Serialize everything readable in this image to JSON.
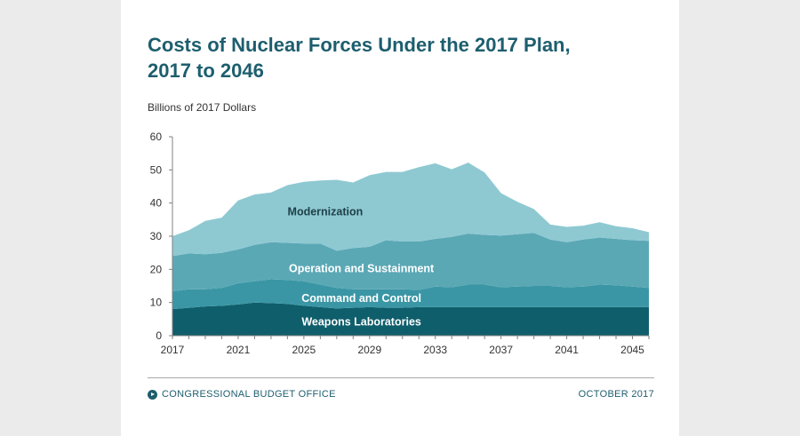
{
  "title_line1": "Costs of Nuclear Forces Under the 2017 Plan,",
  "title_line2": "2017 to 2046",
  "footer": {
    "source": "CONGRESSIONAL BUDGET OFFICE",
    "date": "OCTOBER 2017"
  },
  "colors": {
    "weapons": "#0f5e6c",
    "command": "#3a96a5",
    "operation": "#5ba8b5",
    "modernization": "#8ec9d2",
    "axis": "#808080",
    "title": "#1d5e6e"
  },
  "chart_data": {
    "type": "area",
    "stacked": true,
    "ylabel": "Billions of 2017 Dollars",
    "ylim": [
      0,
      60
    ],
    "yticks": [
      "0",
      "10",
      "20",
      "30",
      "40",
      "50",
      "60"
    ],
    "xlim": [
      2017,
      2046
    ],
    "xticks": [
      "2017",
      "2021",
      "2025",
      "2029",
      "2033",
      "2037",
      "2041",
      "2045"
    ],
    "x": [
      2017,
      2018,
      2019,
      2020,
      2021,
      2022,
      2023,
      2024,
      2025,
      2026,
      2027,
      2028,
      2029,
      2030,
      2031,
      2032,
      2033,
      2034,
      2035,
      2036,
      2037,
      2038,
      2039,
      2040,
      2041,
      2042,
      2043,
      2044,
      2045,
      2046
    ],
    "series": [
      {
        "name": "Weapons Laboratories",
        "key": "weapons",
        "values": [
          8,
          8.4,
          8.8,
          9,
          9.4,
          10,
          9.8,
          9.6,
          9,
          8.6,
          8.2,
          8.4,
          8.6,
          8.4,
          8.4,
          8.6,
          8.6,
          8.6,
          8.6,
          8.6,
          8.6,
          8.6,
          8.6,
          8.6,
          8.6,
          8.6,
          8.6,
          8.6,
          8.6,
          8.6
        ]
      },
      {
        "name": "Command and Control",
        "key": "command",
        "values": [
          5.4,
          5.6,
          5.2,
          5.4,
          6.4,
          6.4,
          7.2,
          7.2,
          7.4,
          6.8,
          6.2,
          5.6,
          5.4,
          5.6,
          5.6,
          5.2,
          6.2,
          6,
          6.8,
          6.8,
          6,
          6.2,
          6.4,
          6.4,
          6,
          6.2,
          6.8,
          6.6,
          6.2,
          5.8
        ]
      },
      {
        "name": "Operation and Sustainment",
        "key": "operation",
        "values": [
          10.6,
          10.8,
          10.6,
          10.6,
          10.2,
          11,
          11.2,
          11.2,
          11.4,
          12.4,
          11.2,
          12.4,
          12.8,
          14.8,
          14.4,
          14.6,
          14.4,
          15.2,
          15.4,
          15,
          15.6,
          15.8,
          16,
          14,
          13.6,
          14.2,
          14.2,
          14,
          14,
          14.2
        ]
      },
      {
        "name": "Modernization",
        "key": "modernization",
        "values": [
          6,
          7,
          10,
          10.6,
          14.8,
          15.2,
          15,
          17.4,
          18.6,
          19,
          21.4,
          19.8,
          21.6,
          20.6,
          21,
          22.4,
          22.8,
          20.4,
          21.4,
          18.8,
          12.8,
          9.8,
          7.2,
          4.5,
          4.6,
          4.2,
          4.6,
          3.8,
          3.6,
          2.6
        ]
      }
    ]
  }
}
